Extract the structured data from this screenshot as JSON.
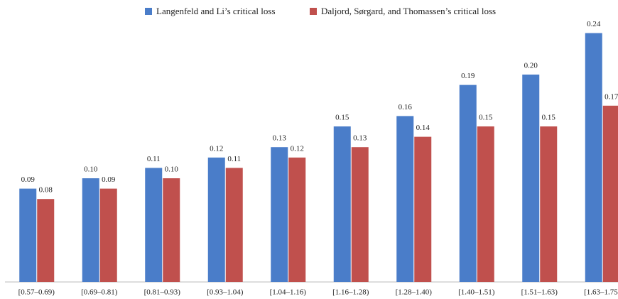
{
  "chart_data": {
    "type": "bar",
    "categories": [
      "[0.57–0.69)",
      "[0.69–0.81)",
      "[0.81–0.93)",
      "[0.93–1.04)",
      "[1.04–1.16)",
      "[1.16–1.28)",
      "[1.28–1.40)",
      "[1.40–1.51)",
      "[1.51–1.63)",
      "[1.63–1.75]"
    ],
    "series": [
      {
        "name": "Langenfeld and Li’s critical loss",
        "color": "#4a7dc9",
        "values": [
          0.09,
          0.1,
          0.11,
          0.12,
          0.13,
          0.15,
          0.16,
          0.19,
          0.2,
          0.24
        ],
        "value_labels": [
          "0.09",
          "0.10",
          "0.11",
          "0.12",
          "0.13",
          "0.15",
          "0.16",
          "0.19",
          "0.20",
          "0.24"
        ]
      },
      {
        "name": "Daljord, Sørgard, and Thomassen’s critical loss",
        "color": "#c0504d",
        "values": [
          0.08,
          0.09,
          0.1,
          0.11,
          0.12,
          0.13,
          0.14,
          0.15,
          0.15,
          0.17
        ],
        "value_labels": [
          "0.08",
          "0.09",
          "0.10",
          "0.11",
          "0.12",
          "0.13",
          "0.14",
          "0.15",
          "0.15",
          "0.17"
        ]
      }
    ],
    "ylim": [
      0,
      0.25
    ]
  }
}
